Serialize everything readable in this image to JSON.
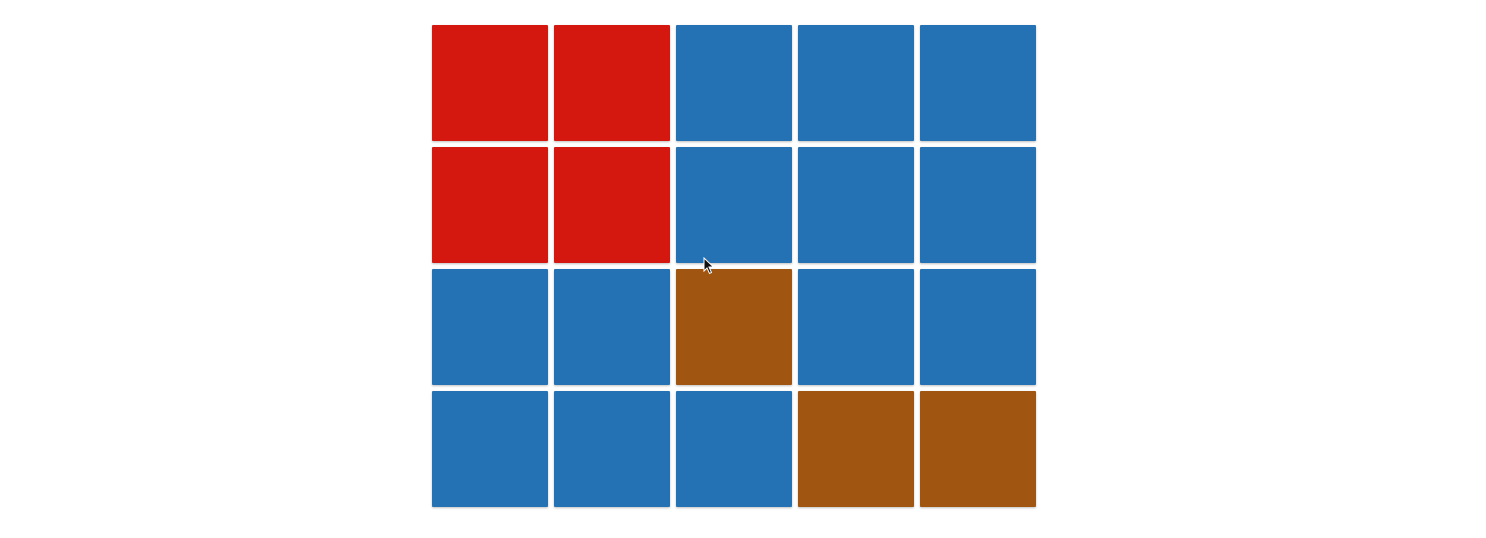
{
  "palette": {
    "red": "#d4180f",
    "blue": "#2472b3",
    "brown": "#a05511"
  },
  "board": {
    "rows": 4,
    "cols": 5,
    "tiles": [
      [
        "red",
        "red",
        "blue",
        "blue",
        "blue"
      ],
      [
        "red",
        "red",
        "blue",
        "blue",
        "blue"
      ],
      [
        "blue",
        "blue",
        "brown",
        "blue",
        "blue"
      ],
      [
        "blue",
        "blue",
        "blue",
        "brown",
        "brown"
      ]
    ]
  },
  "cursor": {
    "icon": "mouse-pointer-icon"
  }
}
